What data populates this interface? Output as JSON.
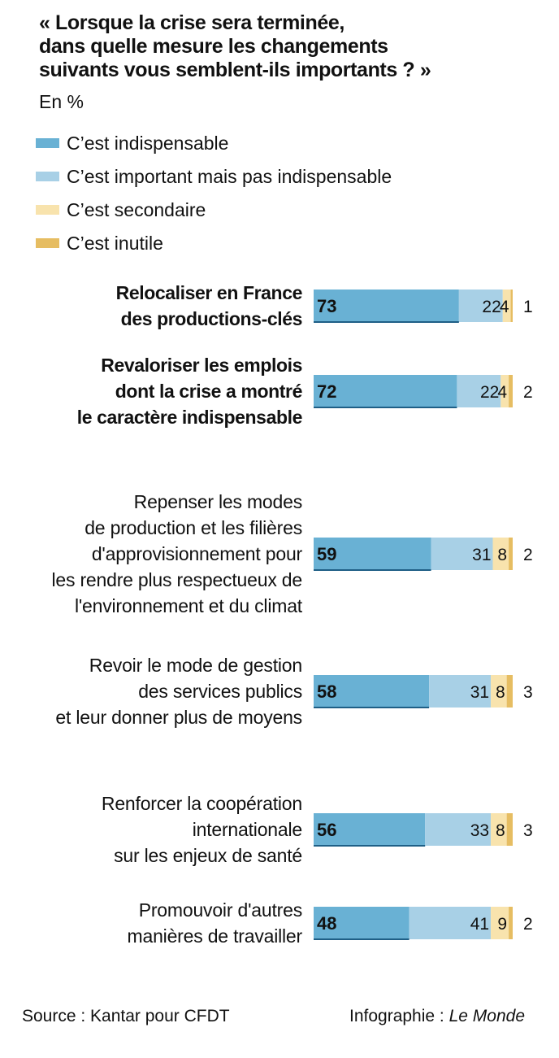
{
  "title_lines": [
    "« Lorsque la crise sera terminée,",
    "dans quelle mesure les changements",
    "suivants vous semblent-ils importants ? »"
  ],
  "subtitle": "En %",
  "colors": {
    "indispensable": "#69b1d4",
    "important": "#a8d0e6",
    "secondaire": "#f8e3ad",
    "inutile": "#e6bd62",
    "axis": "#1f5f86"
  },
  "chart_data": {
    "type": "bar",
    "orientation": "horizontal",
    "stacked": true,
    "unit": "%",
    "xlim": [
      0,
      100
    ],
    "series": [
      {
        "name": "C’est indispensable",
        "values": [
          73,
          72,
          59,
          58,
          56,
          48
        ]
      },
      {
        "name": "C’est important mais pas indispensable",
        "values": [
          22,
          22,
          31,
          31,
          33,
          41
        ]
      },
      {
        "name": "C’est secondaire",
        "values": [
          4,
          4,
          8,
          8,
          8,
          9
        ]
      },
      {
        "name": "C’est inutile",
        "values": [
          1,
          2,
          2,
          3,
          3,
          2
        ]
      }
    ],
    "categories": [
      {
        "lines": [
          "Relocaliser en France",
          "des productions-clés"
        ],
        "bold": true
      },
      {
        "lines": [
          "Revaloriser les emplois",
          "dont la crise a montré",
          "le caractère indispensable"
        ],
        "bold": true
      },
      {
        "lines": [
          "Repenser les modes",
          "de production et les filières",
          "d'approvisionnement pour",
          "les rendre plus respectueux de",
          "l'environnement et du climat"
        ],
        "bold": false
      },
      {
        "lines": [
          "Revoir le mode de gestion",
          "des services publics",
          "et leur donner plus de moyens"
        ],
        "bold": false
      },
      {
        "lines": [
          "Renforcer la coopération",
          "internationale",
          "sur les enjeux de santé"
        ],
        "bold": false
      },
      {
        "lines": [
          "Promouvoir d'autres",
          "manières de travailler"
        ],
        "bold": false
      }
    ],
    "legend_position": "top-left",
    "grid": false
  },
  "footer": {
    "source": "Source : Kantar pour CFDT",
    "credit_prefix": "Infographie : ",
    "credit_name": "Le Monde"
  }
}
